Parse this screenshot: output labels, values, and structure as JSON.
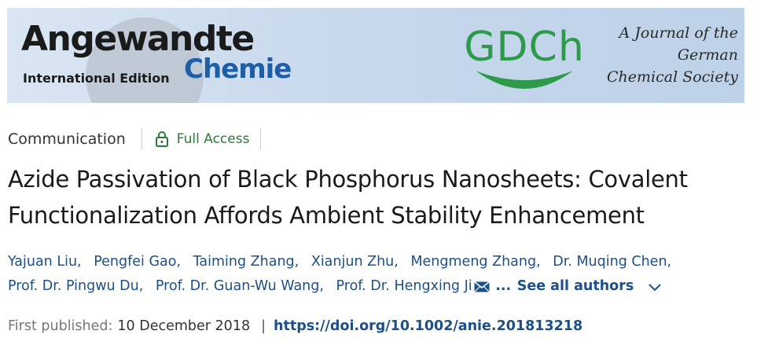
{
  "banner": {
    "logo_main": "Angewandte",
    "logo_intl": "International Edition",
    "logo_chemie": "Chemie",
    "society_logo": "GDCh",
    "journal_line1": "A Journal of the",
    "journal_line2": "German",
    "journal_line3": "Chemical Society"
  },
  "meta": {
    "article_type": "Communication",
    "access_label": "Full Access",
    "access_icon": "lock-icon"
  },
  "title": {
    "line1": "Azide Passivation of Black Phosphorus Nanosheets: Covalent",
    "line2": "Functionalization Affords Ambient Stability Enhancement"
  },
  "authors": {
    "list": [
      "Yajuan Liu",
      "Pengfei Gao",
      "Taiming Zhang",
      "Xianjun Zhu",
      "Mengmeng Zhang",
      "Dr. Muqing Chen",
      "Prof. Dr. Pingwu Du",
      "Prof. Dr. Guan-Wu Wang",
      "Prof. Dr. Hengxing Ji"
    ],
    "comma": ",",
    "ellipsis": "...",
    "see_all": "See all authors"
  },
  "publication": {
    "label": "First published:",
    "date": "10 December 2018",
    "separator": "|",
    "doi": "https://doi.org/10.1002/anie.201813218"
  },
  "colors": {
    "link_blue": "#1d4f8a",
    "access_green": "#2a7d3a",
    "gdch_green": "#2d9a4a",
    "chemie_blue": "#1d5ea5"
  }
}
